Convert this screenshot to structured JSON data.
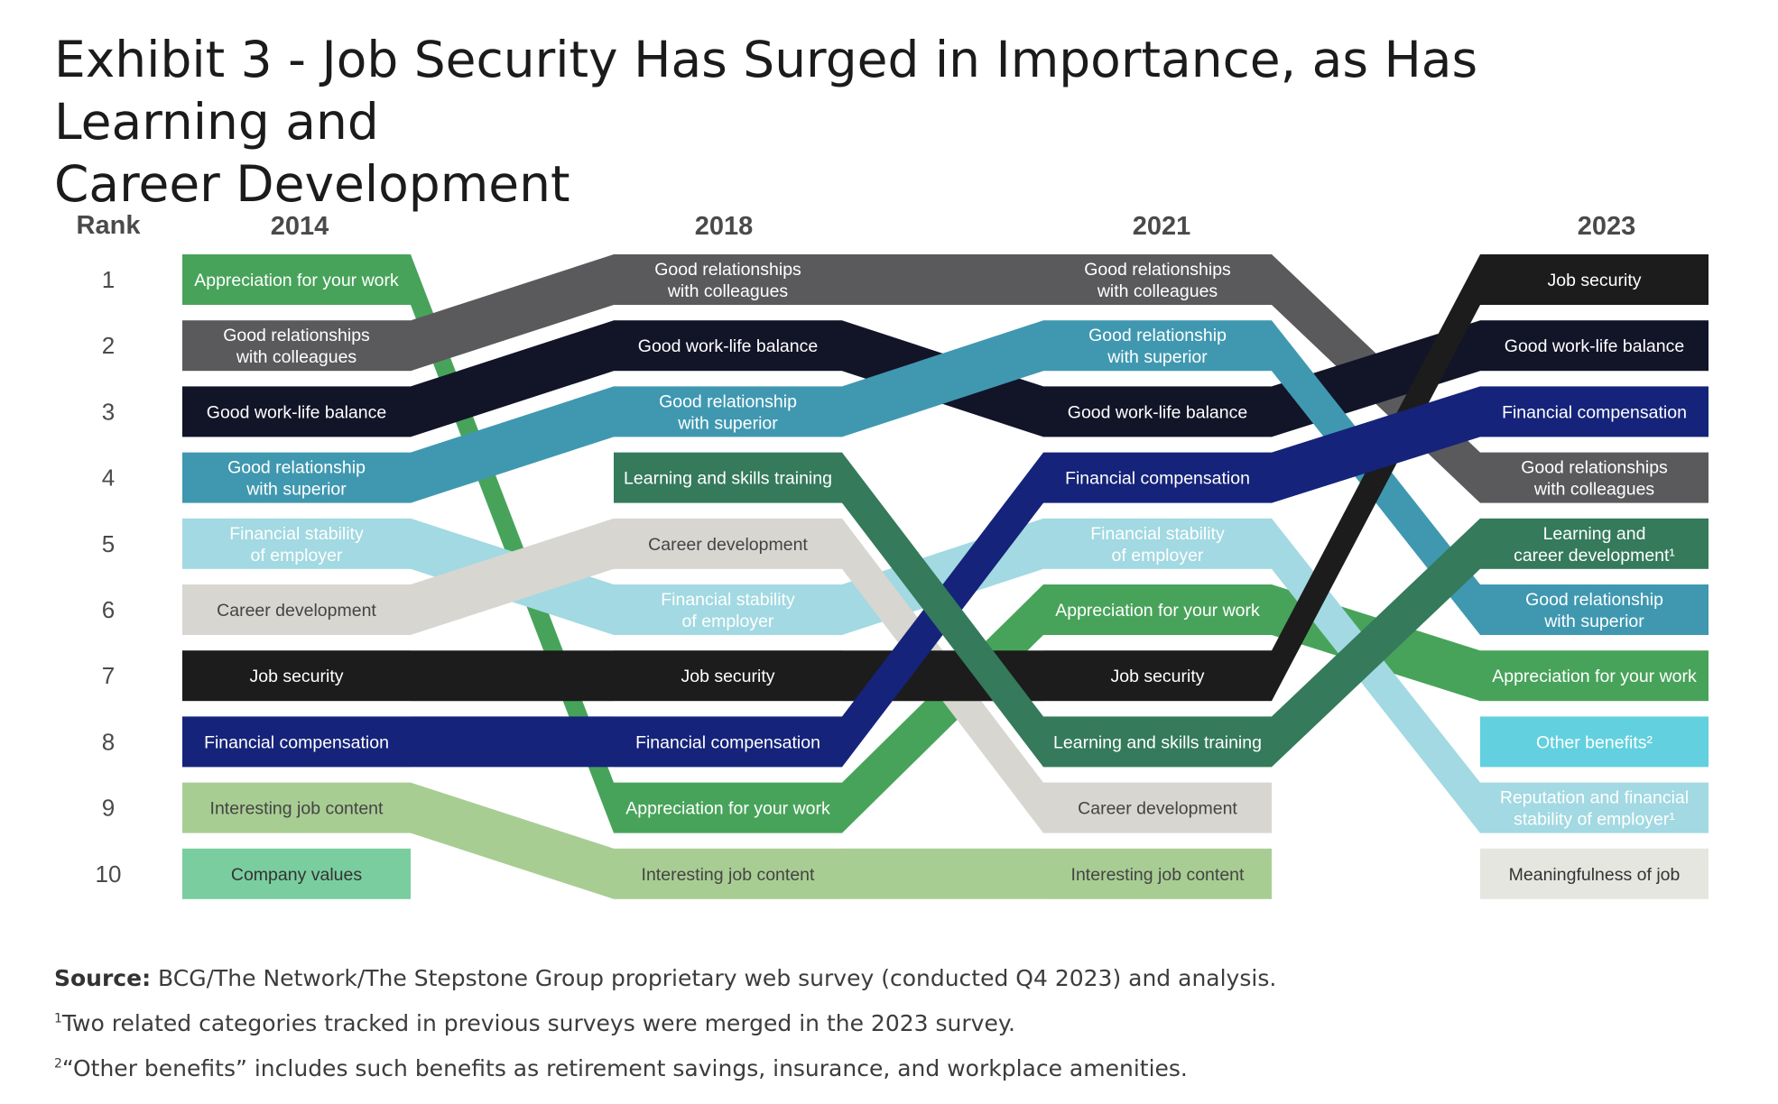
{
  "title": {
    "line1": "Exhibit 3 - Job Security Has Surged in Importance, as Has Learning and",
    "line2": "Career Development"
  },
  "chart_data": {
    "type": "bump",
    "rank_header": "Rank",
    "years": [
      "2014",
      "2018",
      "2021",
      "2023"
    ],
    "ranks": [
      "1",
      "2",
      "3",
      "4",
      "5",
      "6",
      "7",
      "8",
      "9",
      "10"
    ],
    "items": [
      {
        "key": "appreciation",
        "color": "#48a35a",
        "text_color": "#ffffff",
        "ranks": [
          1,
          9,
          6,
          7
        ],
        "labels": [
          "Appreciation for your work",
          "Appreciation for your work",
          "Appreciation for your work",
          "Appreciation for your work"
        ]
      },
      {
        "key": "colleagues",
        "color": "#5a5a5c",
        "text_color": "#ffffff",
        "ranks": [
          2,
          1,
          1,
          4
        ],
        "labels": [
          "Good relationships\nwith colleagues",
          "Good relationships\nwith colleagues",
          "Good relationships\nwith colleagues",
          "Good relationships\nwith colleagues"
        ]
      },
      {
        "key": "worklife",
        "color": "#121428",
        "text_color": "#ffffff",
        "ranks": [
          3,
          2,
          3,
          2
        ],
        "labels": [
          "Good work-life balance",
          "Good work-life balance",
          "Good work-life balance",
          "Good work-life balance"
        ]
      },
      {
        "key": "superior",
        "color": "#3f98b0",
        "text_color": "#ffffff",
        "ranks": [
          4,
          3,
          2,
          6
        ],
        "labels": [
          "Good relationship\nwith superior",
          "Good relationship\nwith superior",
          "Good relationship\nwith superior",
          "Good relationship\nwith superior"
        ]
      },
      {
        "key": "stability",
        "color": "#a2d9e2",
        "text_color": "#ffffff",
        "ranks": [
          5,
          6,
          5,
          9
        ],
        "labels": [
          "Financial stability\nof employer",
          "Financial stability\nof employer",
          "Financial stability\nof employer",
          "Reputation and financial\nstability of employer¹"
        ]
      },
      {
        "key": "career",
        "color": "#d7d6d1",
        "text_color": "#444444",
        "ranks": [
          6,
          5,
          9,
          null
        ],
        "labels": [
          "Career development",
          "Career development",
          "Career development",
          ""
        ]
      },
      {
        "key": "security",
        "color": "#1c1c1c",
        "text_color": "#ffffff",
        "ranks": [
          7,
          7,
          7,
          1
        ],
        "labels": [
          "Job security",
          "Job security",
          "Job security",
          "Job security"
        ]
      },
      {
        "key": "compensation",
        "color": "#15237a",
        "text_color": "#ffffff",
        "ranks": [
          8,
          8,
          4,
          3
        ],
        "labels": [
          "Financial compensation",
          "Financial compensation",
          "Financial compensation",
          "Financial compensation"
        ]
      },
      {
        "key": "content",
        "color": "#a8cd93",
        "text_color": "#444444",
        "ranks": [
          9,
          10,
          10,
          null
        ],
        "labels": [
          "Interesting job content",
          "Interesting job content",
          "Interesting job content",
          ""
        ]
      },
      {
        "key": "learning",
        "color": "#347a5b",
        "text_color": "#ffffff",
        "ranks": [
          null,
          4,
          8,
          5
        ],
        "labels": [
          "",
          "Learning and skills training",
          "Learning and skills training",
          "Learning and\ncareer development¹"
        ]
      },
      {
        "key": "values",
        "color": "#79cd9f",
        "text_color": "#333333",
        "ranks": [
          10,
          null,
          null,
          null
        ],
        "labels": [
          "Company values",
          "",
          "",
          ""
        ]
      },
      {
        "key": "other_benefits",
        "color": "#62d0de",
        "text_color": "#ffffff",
        "ranks": [
          null,
          null,
          null,
          8
        ],
        "labels": [
          "",
          "",
          "",
          "Other benefits²"
        ]
      },
      {
        "key": "meaningful",
        "color": "#e6e6e1",
        "text_color": "#333333",
        "ranks": [
          null,
          null,
          null,
          10
        ],
        "labels": [
          "",
          "",
          "",
          "Meaningfulness of job"
        ]
      }
    ]
  },
  "notes": {
    "source_label": "Source:",
    "source_text": "BCG/The Network/The Stepstone Group proprietary web survey (conducted Q4 2023) and analysis.",
    "note1_mark": "1",
    "note1_text": "Two related categories tracked in previous surveys were merged in the 2023 survey.",
    "note2_mark": "2",
    "note2_text": "“Other benefits” includes such benefits as retirement savings, insurance, and workplace amenities."
  }
}
